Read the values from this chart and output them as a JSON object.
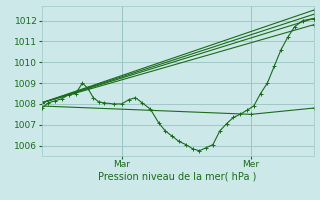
{
  "bg_color": "#cce8e8",
  "grid_color": "#a0c8c8",
  "line_color": "#1a6b1a",
  "marker_color": "#1a6b1a",
  "xlabel": "Pression niveau de la mer( hPa )",
  "ylim": [
    1005.5,
    1012.7
  ],
  "yticks": [
    1006,
    1007,
    1008,
    1009,
    1010,
    1011,
    1012
  ],
  "xlim": [
    0.0,
    1.0
  ],
  "vline_mar_x": 0.295,
  "vline_mer_x": 0.77,
  "mar_label": "Mar",
  "mer_label": "Mer",
  "series_detail": [
    0.0,
    1007.8,
    0.025,
    1008.05,
    0.05,
    1008.15,
    0.075,
    1008.25,
    0.1,
    1008.45,
    0.125,
    1008.5,
    0.15,
    1009.0,
    0.17,
    1008.75,
    0.19,
    1008.3,
    0.21,
    1008.1,
    0.23,
    1008.05,
    0.265,
    1008.0,
    0.295,
    1008.0,
    0.32,
    1008.2,
    0.345,
    1008.3,
    0.37,
    1008.05,
    0.4,
    1007.75,
    0.43,
    1007.1,
    0.455,
    1006.7,
    0.48,
    1006.45,
    0.505,
    1006.2,
    0.53,
    1006.05,
    0.555,
    1005.85,
    0.58,
    1005.75,
    0.605,
    1005.9,
    0.63,
    1006.05,
    0.655,
    1006.7,
    0.68,
    1007.05,
    0.705,
    1007.35,
    0.73,
    1007.5,
    0.755,
    1007.7,
    0.78,
    1007.9,
    0.805,
    1008.5,
    0.83,
    1009.0,
    0.855,
    1009.8,
    0.88,
    1010.6,
    0.905,
    1011.2,
    0.93,
    1011.7,
    0.96,
    1012.0,
    1.0,
    1012.1
  ],
  "fan_lines": [
    [
      [
        0.0,
        1008.05
      ],
      [
        1.0,
        1012.5
      ]
    ],
    [
      [
        0.0,
        1008.05
      ],
      [
        1.0,
        1012.3
      ]
    ],
    [
      [
        0.0,
        1008.05
      ],
      [
        1.0,
        1012.1
      ]
    ],
    [
      [
        0.0,
        1008.05
      ],
      [
        1.0,
        1011.8
      ]
    ],
    [
      [
        0.0,
        1007.9
      ],
      [
        0.77,
        1007.5
      ],
      [
        1.0,
        1007.8
      ]
    ]
  ]
}
